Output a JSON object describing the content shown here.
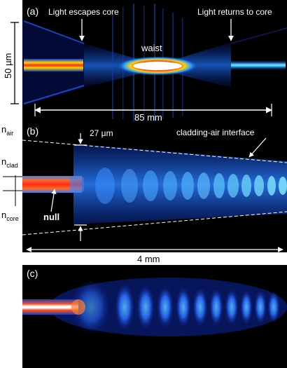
{
  "panels": {
    "a": {
      "label": "(a)",
      "annotations": {
        "escape": "Light escapes core",
        "returns": "Light returns to core",
        "waist": "waist"
      },
      "scale_vertical": "50 µm",
      "scale_horizontal": "85 mm"
    },
    "b": {
      "label": "(b)",
      "annotations": {
        "width": "27 µm",
        "interface": "cladding-air interface",
        "null": "null"
      },
      "index_labels": {
        "air": {
          "base": "n",
          "sub": "air"
        },
        "clad": {
          "base": "n",
          "sub": "clad"
        },
        "core": {
          "base": "n",
          "sub": "core"
        }
      },
      "scale_horizontal": "4 mm"
    },
    "c": {
      "label": "(c)"
    }
  },
  "colors": {
    "background": "#000000",
    "field_low": "#0a1a8c",
    "field_mid": "#1e78ff",
    "field_hot": "#ffeb3b",
    "field_peak": "#ff2a1a",
    "line": "#ffffff",
    "page": "#ffffff"
  }
}
